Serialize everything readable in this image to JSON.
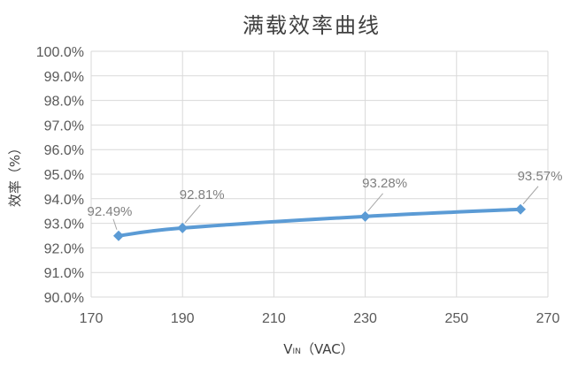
{
  "chart_data": {
    "type": "line",
    "title": "满载效率曲线",
    "xlabel_main": "V",
    "xlabel_sub": "IN",
    "xlabel_unit": "（VAC）",
    "ylabel": "效率（%）",
    "xlim": [
      170,
      270
    ],
    "ylim": [
      90.0,
      100.0
    ],
    "x_ticks": [
      170,
      190,
      210,
      230,
      250,
      270
    ],
    "y_ticks": [
      {
        "value": 90,
        "label": "90.0%"
      },
      {
        "value": 91,
        "label": "91.0%"
      },
      {
        "value": 92,
        "label": "92.0%"
      },
      {
        "value": 93,
        "label": "93.0%"
      },
      {
        "value": 94,
        "label": "94.0%"
      },
      {
        "value": 95,
        "label": "95.0%"
      },
      {
        "value": 96,
        "label": "96.0%"
      },
      {
        "value": 97,
        "label": "97.0%"
      },
      {
        "value": 98,
        "label": "98.0%"
      },
      {
        "value": 99,
        "label": "99.0%"
      },
      {
        "value": 100,
        "label": "100.0%"
      }
    ],
    "grid": true,
    "legend": "none",
    "color": "#5b9bd5",
    "series": [
      {
        "points": [
          {
            "x": 176,
            "y": 92.49,
            "label": "92.49%"
          },
          {
            "x": 190,
            "y": 92.81,
            "label": "92.81%"
          },
          {
            "x": 230,
            "y": 93.28,
            "label": "93.28%"
          },
          {
            "x": 264,
            "y": 93.57,
            "label": "93.57%"
          }
        ]
      }
    ]
  }
}
